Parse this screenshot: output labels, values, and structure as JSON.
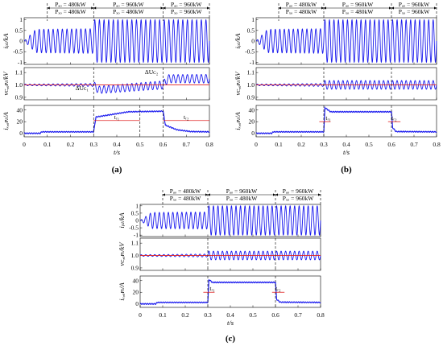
{
  "figure": {
    "panels": [
      {
        "label": "(a)",
        "p_segments": [
          {
            "pac": "Pₐₒ = 480kW",
            "pdc": "Pₓₒ = 480kW"
          },
          {
            "pac": "Pₐₒ = 960kW",
            "pdc": "Pₓₒ = 480kW"
          },
          {
            "pac": "Pₐₒ = 960kW",
            "pdc": "Pₓₒ = 960kW"
          }
        ],
        "ylabels": [
          "iₚₗ/kA",
          "vᴄ,ₐᴘₗ/kV",
          "iₓ,ₐᴘₗ/A"
        ],
        "xlabel": "t/s",
        "annotations": [
          "tᵣ₁",
          "tᵣ₂",
          "ΔUᴄ₁",
          "ΔUᴄ₂"
        ]
      },
      {
        "label": "(b)",
        "p_segments": [
          {
            "pac": "Pₐₒ = 480kW",
            "pdc": "Pₓₒ = 480kW"
          },
          {
            "pac": "Pₐₒ = 960kW",
            "pdc": "Pₓₒ = 480kW"
          },
          {
            "pac": "Pₐₒ = 960kW",
            "pdc": "Pₓₒ = 960kW"
          }
        ],
        "ylabels": [
          "iₚₗ/kA",
          "vᴄ,ₐᴘₗ/kV",
          "iₓ,ₐᴘₗ/A"
        ],
        "xlabel": "t/s",
        "annotations": [
          "tᵣ₁",
          "tᵣ₂"
        ]
      },
      {
        "label": "(c)",
        "p_segments": [
          {
            "pac": "Pₐₒ = 480kW",
            "pdc": "Pₓₒ = 480kW"
          },
          {
            "pac": "Pₐₒ = 960kW",
            "pdc": "Pₓₒ = 480kW"
          },
          {
            "pac": "Pₐₒ = 960kW",
            "pdc": "Pₓₒ = 960kW"
          }
        ],
        "ylabels": [
          "iₚₗ/kA",
          "vᴄ,ₐᴘₗ/kV",
          "iₓ,ₐᴘₗ/A"
        ],
        "xlabel": "t/s",
        "annotations": [
          "tᵣ₁",
          "tᵣ₂"
        ]
      }
    ]
  },
  "chart_data": [
    {
      "type": "line",
      "panel": "(a)",
      "x_ticks": [
        "0",
        "0.1",
        "0.2",
        "0.3",
        "0.4",
        "0.5",
        "0.6",
        "0.7",
        "0.8"
      ],
      "xlim": [
        0,
        0.8
      ],
      "subplots": [
        {
          "ylabel": "iₚₗ/kA",
          "yticks": [
            "1",
            "0.5",
            "0",
            "-0.5",
            "-1"
          ],
          "ylim": [
            -1.1,
            1.1
          ],
          "series": [
            {
              "kind": "sine",
              "amp": [
                [
                  0,
                  0
                ],
                [
                  0.05,
                  0.55
                ],
                [
                  0.3,
                  0.58
                ],
                [
                  0.3,
                  1.0
                ],
                [
                  0.8,
                  1.0
                ]
              ]
            }
          ]
        },
        {
          "ylabel": "vᴄ,ₐᴘₗ/kV",
          "yticks": [
            "1.1",
            "1.0",
            "0.9"
          ],
          "ylim": [
            0.88,
            1.14
          ],
          "series": [
            {
              "kind": "ripple",
              "center": [
                [
                  0,
                  1.0
                ],
                [
                  0.3,
                  1.0
                ],
                [
                  0.32,
                  0.96
                ],
                [
                  0.6,
                  1.0
                ],
                [
                  0.62,
                  1.05
                ],
                [
                  0.8,
                  1.05
                ]
              ],
              "amp": [
                [
                  0,
                  0.006
                ],
                [
                  0.3,
                  0.012
                ],
                [
                  0.3,
                  0.03
                ],
                [
                  0.8,
                  0.035
                ]
              ],
              "color": "#1a1aee"
            },
            {
              "kind": "ref",
              "value": 1.0,
              "color": "#e02020"
            }
          ]
        },
        {
          "ylabel": "iₓ,ₐᴘₗ/A",
          "yticks": [
            "40",
            "20",
            "0"
          ],
          "ylim": [
            -6,
            48
          ],
          "series": [
            {
              "kind": "step",
              "points": [
                [
                  0,
                  0
                ],
                [
                  0.07,
                  0
                ],
                [
                  0.075,
                  2.5
                ],
                [
                  0.3,
                  2.5
                ],
                [
                  0.31,
                  28
                ],
                [
                  0.45,
                  37
                ],
                [
                  0.6,
                  38
                ],
                [
                  0.61,
                  14
                ],
                [
                  0.66,
                  6
                ],
                [
                  0.72,
                  3
                ],
                [
                  0.8,
                  2.5
                ]
              ],
              "color": "#1a1aee"
            }
          ]
        }
      ]
    },
    {
      "type": "line",
      "panel": "(b)",
      "x_ticks": [
        "0",
        "0.1",
        "0.2",
        "0.3",
        "0.4",
        "0.5",
        "0.6",
        "0.7",
        "0.8"
      ],
      "xlim": [
        0,
        0.8
      ],
      "subplots": [
        {
          "ylabel": "iₚₗ/kA",
          "yticks": [
            "1",
            "0.5",
            "0",
            "-0.5",
            "-1"
          ],
          "ylim": [
            -1.1,
            1.1
          ],
          "series": [
            {
              "kind": "sine",
              "amp": [
                [
                  0,
                  0
                ],
                [
                  0.05,
                  0.55
                ],
                [
                  0.3,
                  0.58
                ],
                [
                  0.3,
                  1.0
                ],
                [
                  0.8,
                  1.0
                ]
              ]
            }
          ]
        },
        {
          "ylabel": "vᴄ,ₐᴘₗ/kV",
          "yticks": [
            "1.1",
            "1.0",
            "0.9"
          ],
          "ylim": [
            0.88,
            1.14
          ],
          "series": [
            {
              "kind": "ripple",
              "center": [
                [
                  0,
                  1.0
                ],
                [
                  0.8,
                  1.0
                ]
              ],
              "amp": [
                [
                  0,
                  0.006
                ],
                [
                  0.3,
                  0.012
                ],
                [
                  0.3,
                  0.035
                ],
                [
                  0.8,
                  0.035
                ]
              ],
              "color": "#1a1aee"
            },
            {
              "kind": "ref",
              "value": 1.0,
              "color": "#e02020"
            }
          ]
        },
        {
          "ylabel": "iₓ,ₐᴘₗ/A",
          "yticks": [
            "40",
            "20",
            "0"
          ],
          "ylim": [
            -6,
            48
          ],
          "series": [
            {
              "kind": "step",
              "points": [
                [
                  0,
                  0
                ],
                [
                  0.07,
                  0
                ],
                [
                  0.075,
                  2.5
                ],
                [
                  0.3,
                  2.5
                ],
                [
                  0.305,
                  44
                ],
                [
                  0.33,
                  37
                ],
                [
                  0.6,
                  37
                ],
                [
                  0.605,
                  10
                ],
                [
                  0.62,
                  3
                ],
                [
                  0.8,
                  2.5
                ]
              ],
              "color": "#1a1aee"
            }
          ]
        }
      ]
    },
    {
      "type": "line",
      "panel": "(c)",
      "x_ticks": [
        "0",
        "0.1",
        "0.2",
        "0.3",
        "0.4",
        "0.5",
        "0.6",
        "0.7",
        "0.8"
      ],
      "xlim": [
        0,
        0.8
      ],
      "subplots": [
        {
          "ylabel": "iₚₗ/kA",
          "yticks": [
            "1",
            "0.5",
            "0",
            "-0.5",
            "-1"
          ],
          "ylim": [
            -1.1,
            1.1
          ],
          "series": [
            {
              "kind": "sine",
              "amp": [
                [
                  0,
                  0
                ],
                [
                  0.05,
                  0.55
                ],
                [
                  0.3,
                  0.58
                ],
                [
                  0.3,
                  1.0
                ],
                [
                  0.8,
                  1.0
                ]
              ]
            }
          ]
        },
        {
          "ylabel": "vᴄ,ₐᴘₗ/kV",
          "yticks": [
            "1.1",
            "1.0",
            "0.9"
          ],
          "ylim": [
            0.88,
            1.14
          ],
          "series": [
            {
              "kind": "ripple",
              "center": [
                [
                  0,
                  1.0
                ],
                [
                  0.8,
                  1.0
                ]
              ],
              "amp": [
                [
                  0,
                  0.006
                ],
                [
                  0.3,
                  0.012
                ],
                [
                  0.3,
                  0.035
                ],
                [
                  0.8,
                  0.035
                ]
              ],
              "color": "#1a1aee"
            },
            {
              "kind": "ref",
              "value": 1.0,
              "color": "#e02020"
            }
          ]
        },
        {
          "ylabel": "iₓ,ₐᴘₗ/A",
          "yticks": [
            "40",
            "20",
            "0"
          ],
          "ylim": [
            -6,
            48
          ],
          "series": [
            {
              "kind": "step",
              "points": [
                [
                  0,
                  0
                ],
                [
                  0.07,
                  0
                ],
                [
                  0.075,
                  2.5
                ],
                [
                  0.3,
                  2.5
                ],
                [
                  0.305,
                  42
                ],
                [
                  0.32,
                  37
                ],
                [
                  0.6,
                  37
                ],
                [
                  0.605,
                  8
                ],
                [
                  0.62,
                  3
                ],
                [
                  0.8,
                  2.5
                ]
              ],
              "color": "#1a1aee"
            }
          ]
        }
      ]
    }
  ]
}
